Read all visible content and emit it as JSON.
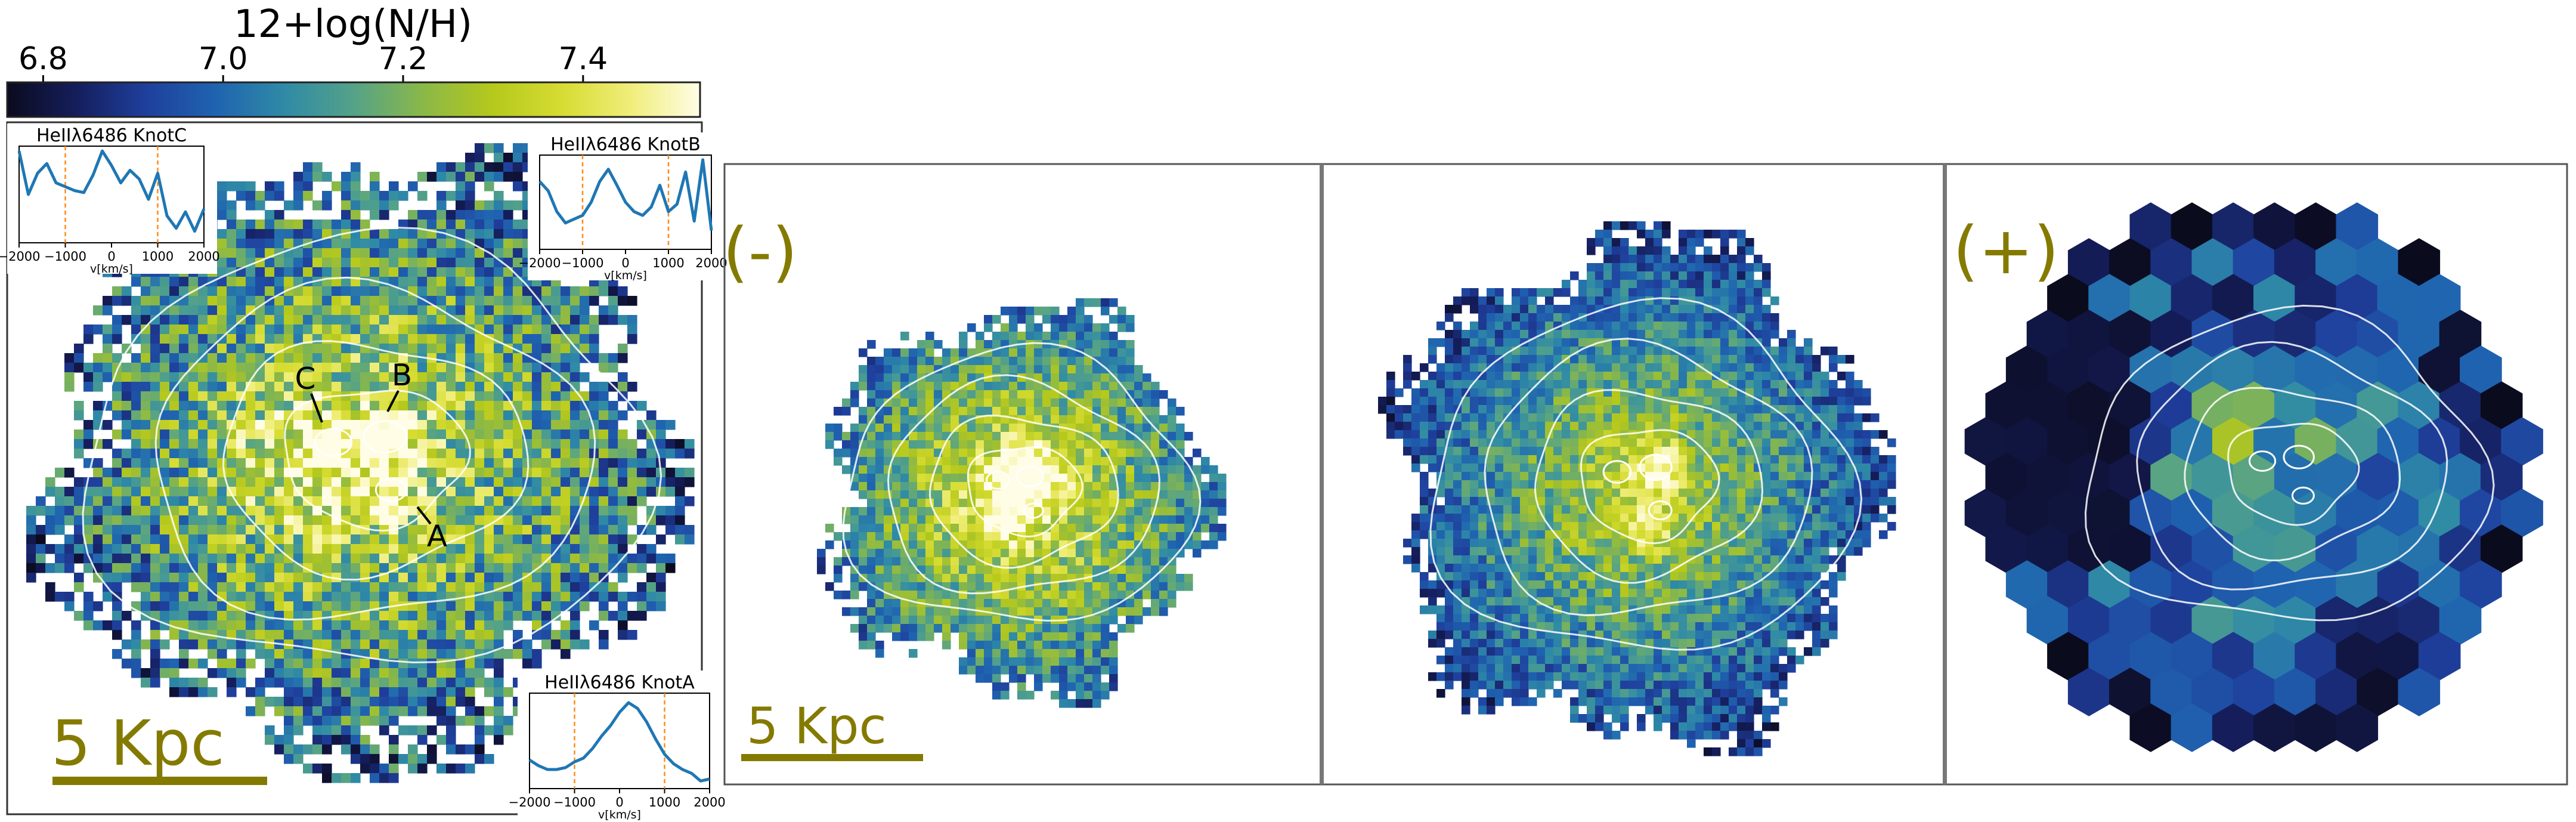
{
  "colorbar": {
    "title": "12+log(N/H)",
    "ticks": [
      {
        "label": "6.8",
        "value": 6.8
      },
      {
        "label": "7.0",
        "value": 7.0
      },
      {
        "label": "7.2",
        "value": 7.2
      },
      {
        "label": "7.4",
        "value": 7.4
      }
    ],
    "range": [
      6.76,
      7.53
    ],
    "colormap": [
      "#0b0b1e",
      "#151e5c",
      "#1f3f9c",
      "#1f63b0",
      "#2f8aa6",
      "#54a288",
      "#8ab848",
      "#b5c81c",
      "#d6dc32",
      "#f0ee7a",
      "#fffde6"
    ]
  },
  "scale_bar_label": "5 Kpc",
  "panel_labels": {
    "minus": "(-)",
    "plus": "(+)"
  },
  "accent_color": "#857a00",
  "knot_labels": [
    "C",
    "B",
    "A"
  ],
  "chart_data": [
    {
      "type": "line",
      "title": "HeIIλ6486 KnotC",
      "xlabel": "v[km/s]",
      "xticks": [
        -2000,
        -1000,
        0,
        1000,
        2000
      ],
      "xlim": [
        -2000,
        2000
      ],
      "vlines": [
        -1000,
        1000
      ],
      "x": [
        -2000,
        -1800,
        -1600,
        -1400,
        -1200,
        -1000,
        -800,
        -600,
        -400,
        -200,
        0,
        200,
        400,
        600,
        800,
        1000,
        1200,
        1400,
        1600,
        1800,
        2000
      ],
      "y": [
        0.95,
        0.5,
        0.72,
        0.82,
        0.62,
        0.58,
        0.54,
        0.52,
        0.7,
        0.95,
        0.8,
        0.62,
        0.75,
        0.66,
        0.45,
        0.72,
        0.28,
        0.15,
        0.32,
        0.12,
        0.35
      ]
    },
    {
      "type": "line",
      "title": "HeIIλ6486 KnotB",
      "xlabel": "v[km/s]",
      "xticks": [
        -2000,
        -1000,
        0,
        1000,
        2000
      ],
      "xlim": [
        -2000,
        2000
      ],
      "vlines": [
        -1000,
        1000
      ],
      "x": [
        -2000,
        -1800,
        -1600,
        -1400,
        -1200,
        -1000,
        -800,
        -600,
        -400,
        -200,
        0,
        200,
        400,
        600,
        800,
        1000,
        1200,
        1400,
        1600,
        1800,
        2000
      ],
      "y": [
        0.72,
        0.62,
        0.4,
        0.28,
        0.32,
        0.36,
        0.5,
        0.72,
        0.85,
        0.68,
        0.5,
        0.4,
        0.36,
        0.45,
        0.68,
        0.4,
        0.48,
        0.82,
        0.3,
        0.95,
        0.2
      ]
    },
    {
      "type": "line",
      "title": "HeIIλ6486 KnotA",
      "xlabel": "v[km/s]",
      "xticks": [
        -2000,
        -1000,
        0,
        1000,
        2000
      ],
      "xlim": [
        -2000,
        2000
      ],
      "vlines": [
        -1000,
        1000
      ],
      "x": [
        -2000,
        -1800,
        -1600,
        -1400,
        -1200,
        -1000,
        -800,
        -600,
        -400,
        -200,
        0,
        200,
        400,
        600,
        800,
        1000,
        1200,
        1400,
        1600,
        1800,
        2000
      ],
      "y": [
        0.3,
        0.24,
        0.2,
        0.2,
        0.22,
        0.28,
        0.32,
        0.42,
        0.55,
        0.66,
        0.8,
        0.9,
        0.84,
        0.7,
        0.52,
        0.36,
        0.26,
        0.2,
        0.16,
        0.08,
        0.1
      ]
    }
  ]
}
